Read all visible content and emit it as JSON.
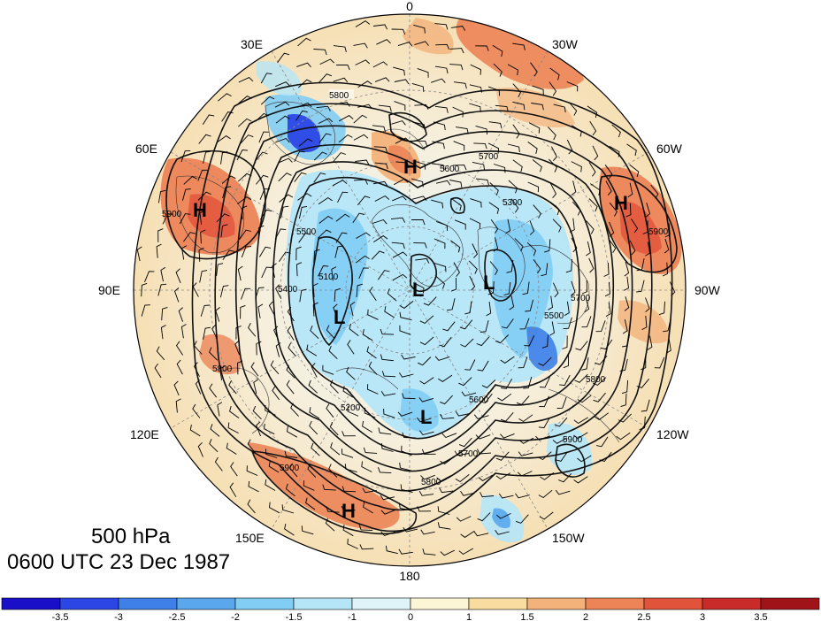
{
  "title": {
    "level": "500 hPa",
    "time": "0600 UTC 23 Dec 1987"
  },
  "longitude_labels": [
    "0",
    "30W",
    "60W",
    "90W",
    "120W",
    "150W",
    "180",
    "150E",
    "120E",
    "90E",
    "60E",
    "30E"
  ],
  "contour_labels": [
    "5800",
    "5700",
    "5600",
    "5500",
    "5400",
    "5300",
    "5200",
    "5100",
    "5900"
  ],
  "centers": [
    {
      "label": "H",
      "kind": "high"
    },
    {
      "label": "H",
      "kind": "high"
    },
    {
      "label": "H",
      "kind": "high"
    },
    {
      "label": "H",
      "kind": "high"
    },
    {
      "label": "L",
      "kind": "low"
    },
    {
      "label": "L",
      "kind": "low"
    },
    {
      "label": "L",
      "kind": "low"
    },
    {
      "label": "L",
      "kind": "low"
    }
  ],
  "colorbar": {
    "ticks": [
      "-3.5",
      "-3",
      "-2.5",
      "-2",
      "-1.5",
      "-1",
      "0",
      "1",
      "1.5",
      "2",
      "2.5",
      "3",
      "3.5"
    ],
    "colors": [
      "#1a0fc8",
      "#2c46e6",
      "#3f7fe8",
      "#5aa7ee",
      "#82cdf4",
      "#b5e6f8",
      "#dff4f9",
      "#fdf6d6",
      "#f8dca0",
      "#f3b27a",
      "#ec8457",
      "#e2533b",
      "#c92a2a",
      "#a01419"
    ]
  }
}
